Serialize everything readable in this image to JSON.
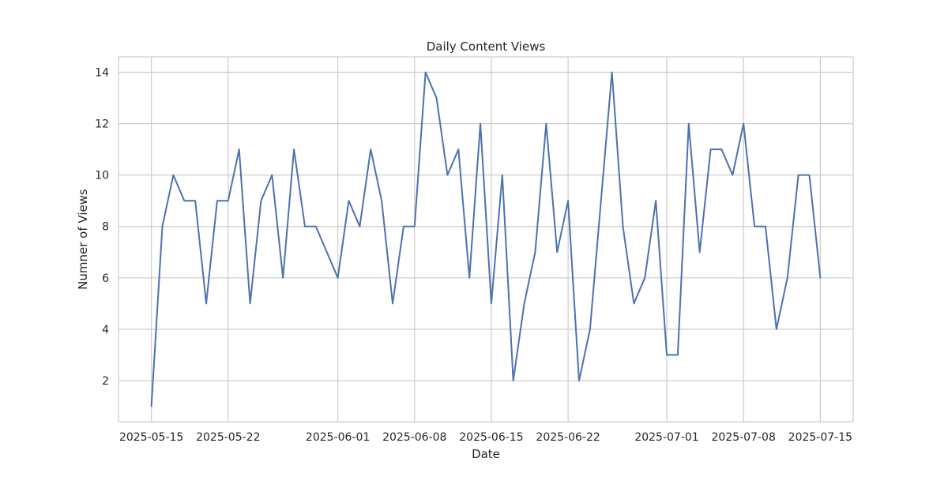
{
  "chart_data": {
    "type": "line",
    "title": "Daily Content Views",
    "xlabel": "Date",
    "ylabel": "Numner of Views",
    "x_start": "2025-05-15",
    "x_end": "2025-07-15",
    "xlim": [
      "2025-05-12",
      "2025-07-18"
    ],
    "ylim": [
      0.4,
      14.6
    ],
    "x_ticks": [
      "2025-05-15",
      "2025-05-22",
      "2025-06-01",
      "2025-06-08",
      "2025-06-15",
      "2025-06-22",
      "2025-07-01",
      "2025-07-08",
      "2025-07-15"
    ],
    "y_ticks": [
      2,
      4,
      6,
      8,
      10,
      12,
      14
    ],
    "grid": true,
    "line_color": "#4c72b0",
    "series": [
      {
        "x": [
          "2025-05-15",
          "2025-05-16",
          "2025-05-17",
          "2025-05-18",
          "2025-05-19",
          "2025-05-20",
          "2025-05-21",
          "2025-05-22",
          "2025-05-23",
          "2025-05-24",
          "2025-05-25",
          "2025-05-26",
          "2025-05-27",
          "2025-05-28",
          "2025-05-29",
          "2025-05-30",
          "2025-05-31",
          "2025-06-01",
          "2025-06-02",
          "2025-06-03",
          "2025-06-04",
          "2025-06-05",
          "2025-06-06",
          "2025-06-07",
          "2025-06-08",
          "2025-06-09",
          "2025-06-10",
          "2025-06-11",
          "2025-06-12",
          "2025-06-13",
          "2025-06-14",
          "2025-06-15",
          "2025-06-16",
          "2025-06-17",
          "2025-06-18",
          "2025-06-19",
          "2025-06-20",
          "2025-06-21",
          "2025-06-22",
          "2025-06-23",
          "2025-06-24",
          "2025-06-25",
          "2025-06-26",
          "2025-06-27",
          "2025-06-28",
          "2025-06-29",
          "2025-06-30",
          "2025-07-01",
          "2025-07-02",
          "2025-07-03",
          "2025-07-04",
          "2025-07-05",
          "2025-07-06",
          "2025-07-07",
          "2025-07-08",
          "2025-07-09",
          "2025-07-10",
          "2025-07-11",
          "2025-07-12",
          "2025-07-13",
          "2025-07-14",
          "2025-07-15"
        ],
        "values": [
          1,
          8,
          10,
          9,
          9,
          5,
          9,
          9,
          11,
          5,
          9,
          10,
          6,
          11,
          8,
          8,
          7,
          6,
          9,
          8,
          11,
          9,
          5,
          8,
          8,
          14,
          13,
          10,
          11,
          6,
          12,
          5,
          10,
          2,
          5,
          7,
          12,
          7,
          9,
          2,
          4,
          9,
          14,
          8,
          5,
          6,
          9,
          3,
          3,
          12,
          7,
          11,
          11,
          10,
          12,
          8,
          8,
          4,
          6,
          10,
          10,
          6
        ]
      }
    ]
  }
}
